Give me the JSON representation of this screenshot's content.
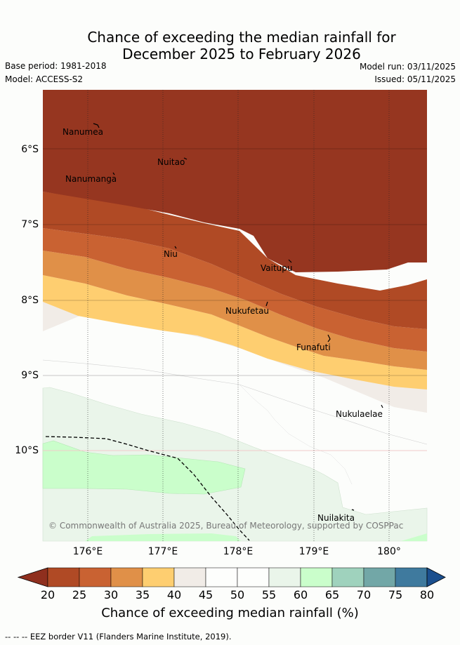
{
  "header": {
    "title_line1": "Chance of exceeding the median rainfall for",
    "title_line2": "December 2025 to February 2026",
    "base_period": "Base period: 1981-2018",
    "model": "Model: ACCESS-S2",
    "model_run": "Model run: 03/11/2025",
    "issued": "Issued: 05/11/2025"
  },
  "map": {
    "lat_labels": [
      "6°S",
      "7°S",
      "8°S",
      "9°S",
      "10°S"
    ],
    "lon_labels": [
      "176°E",
      "177°E",
      "178°E",
      "179°E",
      "180°"
    ],
    "places": [
      "Nanumea",
      "Nuitao",
      "Nanumanga",
      "Niu",
      "Vaitupu",
      "Nukufetau",
      "Funafuti",
      "Nukulaelae",
      "Nuilakita"
    ],
    "copyright": "© Commonwealth of Australia 2025, Bureau of Meteorology, supported by COSPPac"
  },
  "colorbar": {
    "ticks": [
      "20",
      "25",
      "30",
      "35",
      "40",
      "45",
      "50",
      "55",
      "60",
      "65",
      "70",
      "75",
      "80"
    ],
    "colors": [
      "#8f2f1e",
      "#b04a25",
      "#c96232",
      "#e09048",
      "#fece70",
      "#f1ece7",
      "#fdfefc",
      "#fdfefc",
      "#eaf5ea",
      "#cafecb",
      "#9fd2bd",
      "#72a7a7",
      "#3f7a9e",
      "#1b4f8e"
    ],
    "label": "Chance of exceeding median rainfall (%)"
  },
  "footer": {
    "legend": "--  --  -- EEZ border V11 (Flanders Marine Institute, 2019)."
  }
}
